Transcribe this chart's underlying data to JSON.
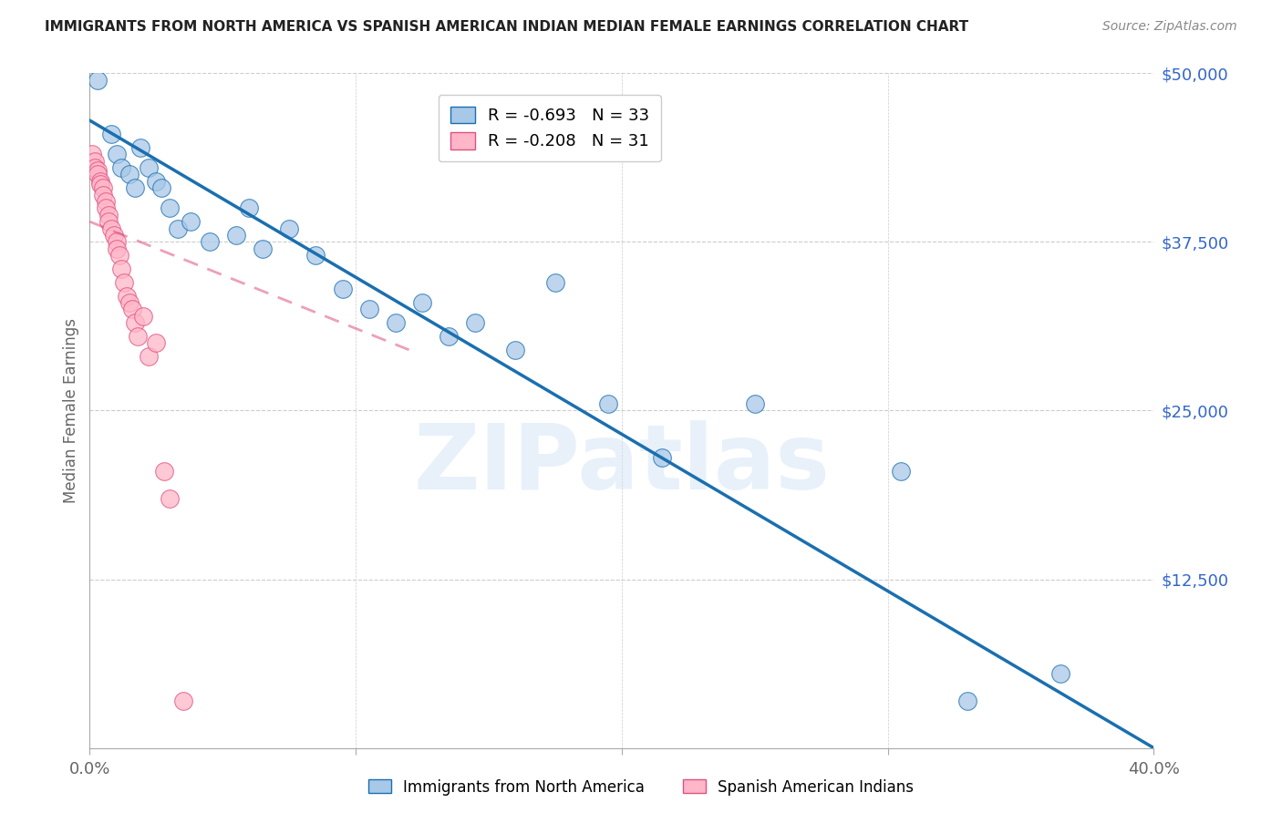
{
  "title": "IMMIGRANTS FROM NORTH AMERICA VS SPANISH AMERICAN INDIAN MEDIAN FEMALE EARNINGS CORRELATION CHART",
  "source": "Source: ZipAtlas.com",
  "xlabel_blue": "Immigrants from North America",
  "xlabel_pink": "Spanish American Indians",
  "ylabel": "Median Female Earnings",
  "watermark": "ZIPatlas",
  "legend_blue_R": "R = -0.693",
  "legend_blue_N": "N = 33",
  "legend_pink_R": "R = -0.208",
  "legend_pink_N": "N = 31",
  "xlim": [
    0.0,
    0.4
  ],
  "ylim": [
    0,
    50000
  ],
  "yticks": [
    0,
    12500,
    25000,
    37500,
    50000
  ],
  "ytick_labels": [
    "",
    "$12,500",
    "$25,000",
    "$37,500",
    "$50,000"
  ],
  "color_blue": "#a8c8e8",
  "color_pink": "#ffb6c8",
  "line_blue": "#1a6faf",
  "line_pink": "#e05080",
  "background_color": "#ffffff",
  "grid_color": "#cccccc",
  "title_color": "#222222",
  "ylabel_color": "#666666",
  "ytick_color": "#3366cc",
  "xtick_color": "#666666",
  "blue_scatter_x": [
    0.003,
    0.008,
    0.01,
    0.012,
    0.015,
    0.017,
    0.019,
    0.022,
    0.025,
    0.027,
    0.03,
    0.033,
    0.038,
    0.045,
    0.055,
    0.06,
    0.065,
    0.075,
    0.085,
    0.095,
    0.105,
    0.115,
    0.125,
    0.135,
    0.145,
    0.16,
    0.175,
    0.195,
    0.215,
    0.25,
    0.305,
    0.33,
    0.365
  ],
  "blue_scatter_y": [
    49500,
    45500,
    44000,
    43000,
    42500,
    41500,
    44500,
    43000,
    42000,
    41500,
    40000,
    38500,
    39000,
    37500,
    38000,
    40000,
    37000,
    38500,
    36500,
    34000,
    32500,
    31500,
    33000,
    30500,
    31500,
    29500,
    34500,
    25500,
    21500,
    25500,
    20500,
    3500,
    5500
  ],
  "pink_scatter_x": [
    0.001,
    0.002,
    0.002,
    0.003,
    0.003,
    0.004,
    0.004,
    0.005,
    0.005,
    0.006,
    0.006,
    0.007,
    0.007,
    0.008,
    0.009,
    0.01,
    0.01,
    0.011,
    0.012,
    0.013,
    0.014,
    0.015,
    0.016,
    0.017,
    0.018,
    0.02,
    0.022,
    0.025,
    0.028,
    0.03,
    0.035
  ],
  "pink_scatter_y": [
    44000,
    43500,
    43000,
    42800,
    42500,
    42000,
    41800,
    41500,
    41000,
    40500,
    40000,
    39500,
    39000,
    38500,
    38000,
    37500,
    37000,
    36500,
    35500,
    34500,
    33500,
    33000,
    32500,
    31500,
    30500,
    32000,
    29000,
    30000,
    20500,
    18500,
    3500
  ],
  "blue_line_x": [
    0.0,
    0.4
  ],
  "blue_line_y": [
    46500,
    0
  ],
  "pink_line_x": [
    0.0,
    0.12
  ],
  "pink_line_y": [
    39000,
    29500
  ]
}
